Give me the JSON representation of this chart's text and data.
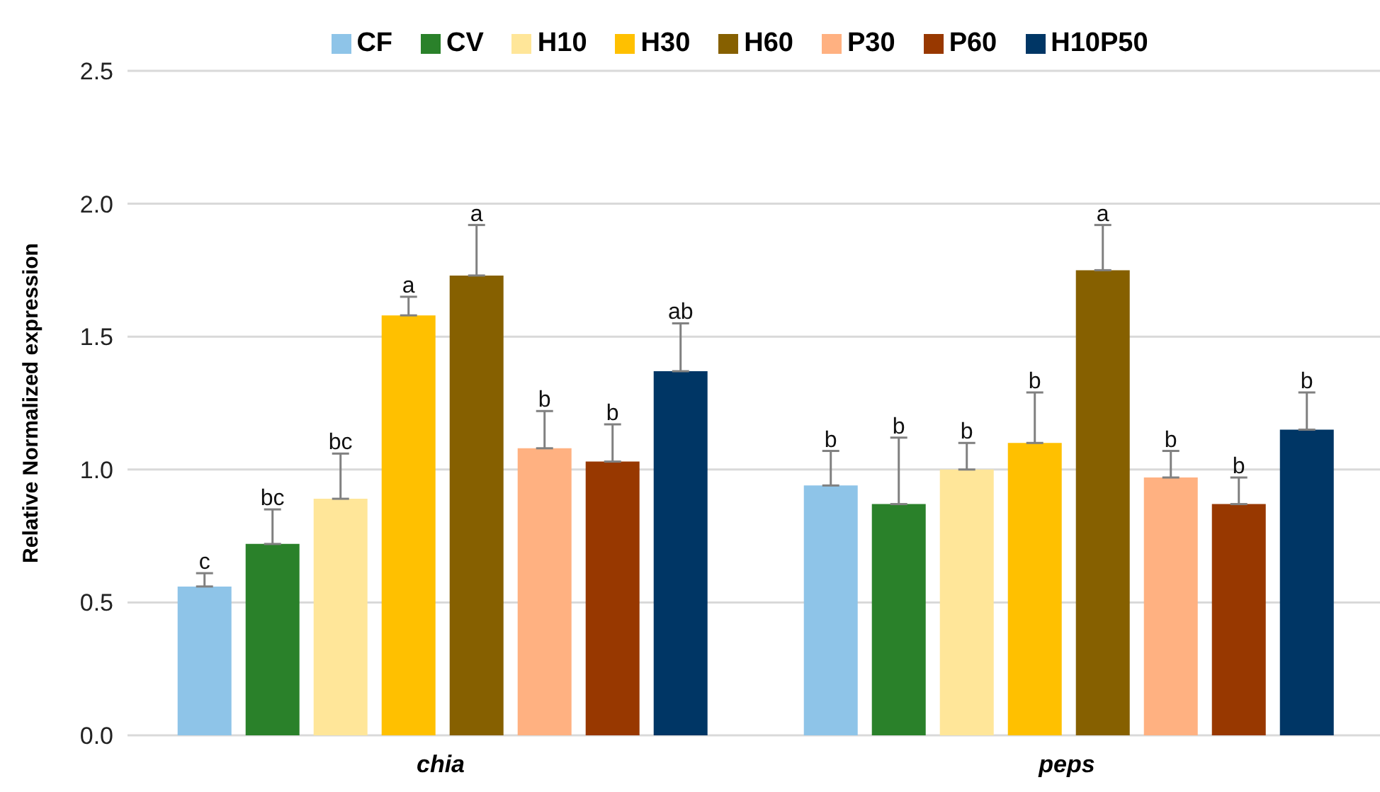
{
  "chart_data": {
    "type": "bar",
    "categories": [
      "chia",
      "peps"
    ],
    "series": [
      {
        "name": "CF",
        "color": "#8ec4e8",
        "values": [
          0.56,
          0.94
        ],
        "errors": [
          [
            0.56,
            0.61
          ],
          [
            0.94,
            1.07
          ]
        ],
        "value_labels": [
          "c",
          "b"
        ]
      },
      {
        "name": "CV",
        "color": "#2a812a",
        "values": [
          0.72,
          0.87
        ],
        "errors": [
          [
            0.72,
            0.85
          ],
          [
            0.87,
            1.12
          ]
        ],
        "value_labels": [
          "bc",
          "b"
        ]
      },
      {
        "name": "H10",
        "color": "#ffe699",
        "values": [
          0.89,
          1.0
        ],
        "errors": [
          [
            0.89,
            1.06
          ],
          [
            1.0,
            1.1
          ]
        ],
        "value_labels": [
          "bc",
          "b"
        ]
      },
      {
        "name": "H30",
        "color": "#ffc000",
        "values": [
          1.58,
          1.1
        ],
        "errors": [
          [
            1.58,
            1.65
          ],
          [
            1.1,
            1.29
          ]
        ],
        "value_labels": [
          "a",
          "b"
        ]
      },
      {
        "name": "H60",
        "color": "#866000",
        "values": [
          1.73,
          1.75
        ],
        "errors": [
          [
            1.73,
            1.92
          ],
          [
            1.75,
            1.92
          ]
        ],
        "value_labels": [
          "a",
          "a"
        ]
      },
      {
        "name": "P30",
        "color": "#ffb181",
        "values": [
          1.08,
          0.97
        ],
        "errors": [
          [
            1.08,
            1.22
          ],
          [
            0.97,
            1.07
          ]
        ],
        "value_labels": [
          "b",
          "b"
        ]
      },
      {
        "name": "P60",
        "color": "#983800",
        "values": [
          1.03,
          0.87
        ],
        "errors": [
          [
            1.03,
            1.17
          ],
          [
            0.87,
            0.97
          ]
        ],
        "value_labels": [
          "b",
          "b"
        ]
      },
      {
        "name": "H10P50",
        "color": "#003665",
        "values": [
          1.37,
          1.15
        ],
        "errors": [
          [
            1.37,
            1.55
          ],
          [
            1.15,
            1.29
          ]
        ],
        "value_labels": [
          "ab",
          "b"
        ]
      }
    ],
    "ylabel": "Relative Normalized expression",
    "ylim": [
      0,
      2.5
    ],
    "yticks": [
      {
        "value": 0,
        "label": "0.0"
      },
      {
        "value": 0.5,
        "label": "0.5"
      },
      {
        "value": 1,
        "label": "1.0"
      },
      {
        "value": 1.5,
        "label": "1.5"
      },
      {
        "value": 2,
        "label": "2.0"
      },
      {
        "value": 2.5,
        "label": "2.5"
      }
    ],
    "grid": "y",
    "legend": "top"
  }
}
